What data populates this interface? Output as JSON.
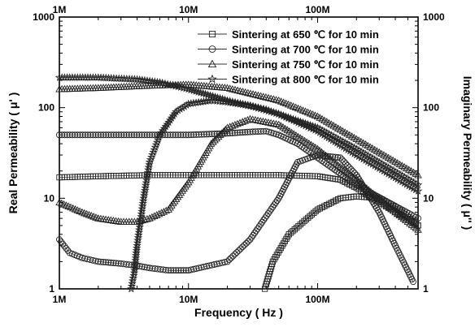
{
  "chart_data": {
    "type": "scatter",
    "xlabel": "Frequency ( Hz )",
    "ylabel_left": "Real Permeability ( μ' )",
    "ylabel_right": "Imaginary Permeability ( μ'' )",
    "x_scale": "log",
    "y_scale": "log",
    "xlim": [
      1000000,
      600000000
    ],
    "ylim": [
      1,
      1000
    ],
    "x_ticks": [
      {
        "value": 1000000,
        "label": "1M"
      },
      {
        "value": 10000000,
        "label": "10M"
      },
      {
        "value": 100000000,
        "label": "100M"
      }
    ],
    "y_ticks": [
      {
        "value": 1,
        "label": "1"
      },
      {
        "value": 10,
        "label": "10"
      },
      {
        "value": 100,
        "label": "100"
      },
      {
        "value": 1000,
        "label": "1000"
      }
    ],
    "grid": false,
    "legend_position": "top-right",
    "series": [
      {
        "name": "Sintering at 650 ℃ for 10 min",
        "marker": "square",
        "curves": [
          {
            "part": "real",
            "x": [
              1000000,
              2000000,
              5000000,
              10000000,
              30000000,
              50000000,
              100000000,
              150000000,
              200000000,
              300000000,
              600000000
            ],
            "y": [
              17,
              17.5,
              18,
              18,
              18,
              18,
              17.5,
              16,
              13,
              9,
              5
            ]
          },
          {
            "part": "imaginary",
            "x": [
              39000000,
              45000000,
              60000000,
              100000000,
              150000000,
              200000000,
              300000000,
              400000000,
              600000000
            ],
            "y": [
              1,
              2,
              4,
              7.5,
              10,
              10.5,
              10,
              8,
              5
            ]
          }
        ]
      },
      {
        "name": "Sintering at 700 ℃ for 10 min",
        "marker": "circle",
        "curves": [
          {
            "part": "real",
            "x": [
              1000000,
              2000000,
              5000000,
              10000000,
              20000000,
              30000000,
              40000000,
              50000000,
              70000000,
              100000000,
              200000000,
              600000000
            ],
            "y": [
              50,
              50,
              50,
              50,
              52,
              54,
              55,
              50,
              40,
              28,
              14,
              6
            ]
          },
          {
            "part": "imaginary",
            "x": [
              1000000,
              1200000,
              1500000,
              2000000,
              3000000,
              4000000,
              5000000,
              7000000,
              10000000,
              20000000,
              30000000,
              50000000,
              70000000,
              100000000,
              150000000,
              200000000,
              300000000,
              400000000,
              550000000
            ],
            "y": [
              3.5,
              2.5,
              2.2,
              2.0,
              1.9,
              1.8,
              1.7,
              1.6,
              1.6,
              2,
              3.5,
              10,
              25,
              30,
              28,
              18,
              7,
              3,
              1.2
            ]
          }
        ]
      },
      {
        "name": "Sintering at 750 ℃ for 10 min",
        "marker": "triangle",
        "curves": [
          {
            "part": "real",
            "x": [
              1000000,
              2000000,
              5000000,
              10000000,
              20000000,
              50000000,
              100000000,
              200000000,
              600000000
            ],
            "y": [
              160,
              165,
              175,
              180,
              165,
              120,
              80,
              45,
              18
            ]
          },
          {
            "part": "imaginary",
            "x": [
              1000000,
              1500000,
              2000000,
              3000000,
              4000000,
              5000000,
              7000000,
              10000000,
              15000000,
              20000000,
              30000000,
              50000000,
              100000000,
              200000000,
              400000000,
              600000000
            ],
            "y": [
              9,
              7,
              6,
              5.5,
              5.5,
              6,
              7.5,
              15,
              40,
              60,
              75,
              65,
              35,
              16,
              7,
              4.5
            ]
          }
        ]
      },
      {
        "name": "Sintering at 800 ℃ for 10 min",
        "marker": "star",
        "curves": [
          {
            "part": "real",
            "x": [
              1000000,
              2000000,
              4000000,
              6000000,
              10000000,
              20000000,
              40000000,
              100000000,
              200000000,
              600000000
            ],
            "y": [
              215,
              215,
              205,
              190,
              160,
              120,
              95,
              60,
              35,
              14
            ]
          },
          {
            "part": "imaginary",
            "x": [
              3600000,
              3800000,
              4000000,
              4500000,
              5000000,
              6000000,
              8000000,
              10000000,
              15000000,
              20000000,
              30000000,
              50000000,
              100000000,
              200000000,
              600000000
            ],
            "y": [
              1,
              1.5,
              3,
              10,
              25,
              50,
              90,
              110,
              120,
              115,
              105,
              85,
              55,
              30,
              12
            ]
          }
        ]
      }
    ]
  }
}
